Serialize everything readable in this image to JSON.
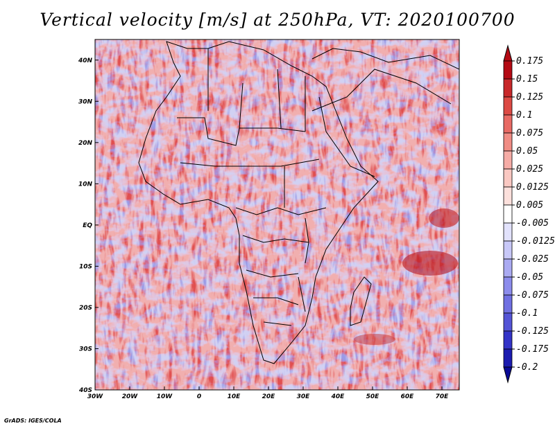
{
  "title": "Vertical velocity [m/s] at 250hPa, VT: 2020100700",
  "credit": "GrADS: IGES/COLA",
  "map": {
    "lon_range": [
      -30,
      75
    ],
    "lat_range": [
      -40,
      45
    ],
    "lon_ticks": [
      {
        "value": -30,
        "label": "30W"
      },
      {
        "value": -20,
        "label": "20W"
      },
      {
        "value": -10,
        "label": "10W"
      },
      {
        "value": 0,
        "label": "0"
      },
      {
        "value": 10,
        "label": "10E"
      },
      {
        "value": 20,
        "label": "20E"
      },
      {
        "value": 30,
        "label": "30E"
      },
      {
        "value": 40,
        "label": "40E"
      },
      {
        "value": 50,
        "label": "50E"
      },
      {
        "value": 60,
        "label": "60E"
      },
      {
        "value": 70,
        "label": "70E"
      }
    ],
    "lat_ticks": [
      {
        "value": 40,
        "label": "40N"
      },
      {
        "value": 30,
        "label": "30N"
      },
      {
        "value": 20,
        "label": "20N"
      },
      {
        "value": 10,
        "label": "10N"
      },
      {
        "value": 0,
        "label": "EQ"
      },
      {
        "value": -10,
        "label": "10S"
      },
      {
        "value": -20,
        "label": "20S"
      },
      {
        "value": -30,
        "label": "30S"
      },
      {
        "value": -40,
        "label": "40S"
      }
    ]
  },
  "colorbar": {
    "levels": [
      "0.175",
      "0.15",
      "0.125",
      "0.1",
      "0.075",
      "0.05",
      "0.025",
      "0.0125",
      "0.005",
      "-0.005",
      "-0.0125",
      "-0.025",
      "-0.05",
      "-0.075",
      "-0.1",
      "-0.125",
      "-0.175",
      "-0.2"
    ],
    "colors": [
      "#b40a14",
      "#c8282a",
      "#dc4a44",
      "#e86a64",
      "#f08c84",
      "#f6aca6",
      "#fac8c2",
      "#fce0dc",
      "#ffffff",
      "#e2e2fc",
      "#c8c8f8",
      "#aaaaf2",
      "#8c8cec",
      "#7070e2",
      "#5454d6",
      "#3434c8",
      "#1c1cb0",
      "#0a0a96"
    ]
  }
}
